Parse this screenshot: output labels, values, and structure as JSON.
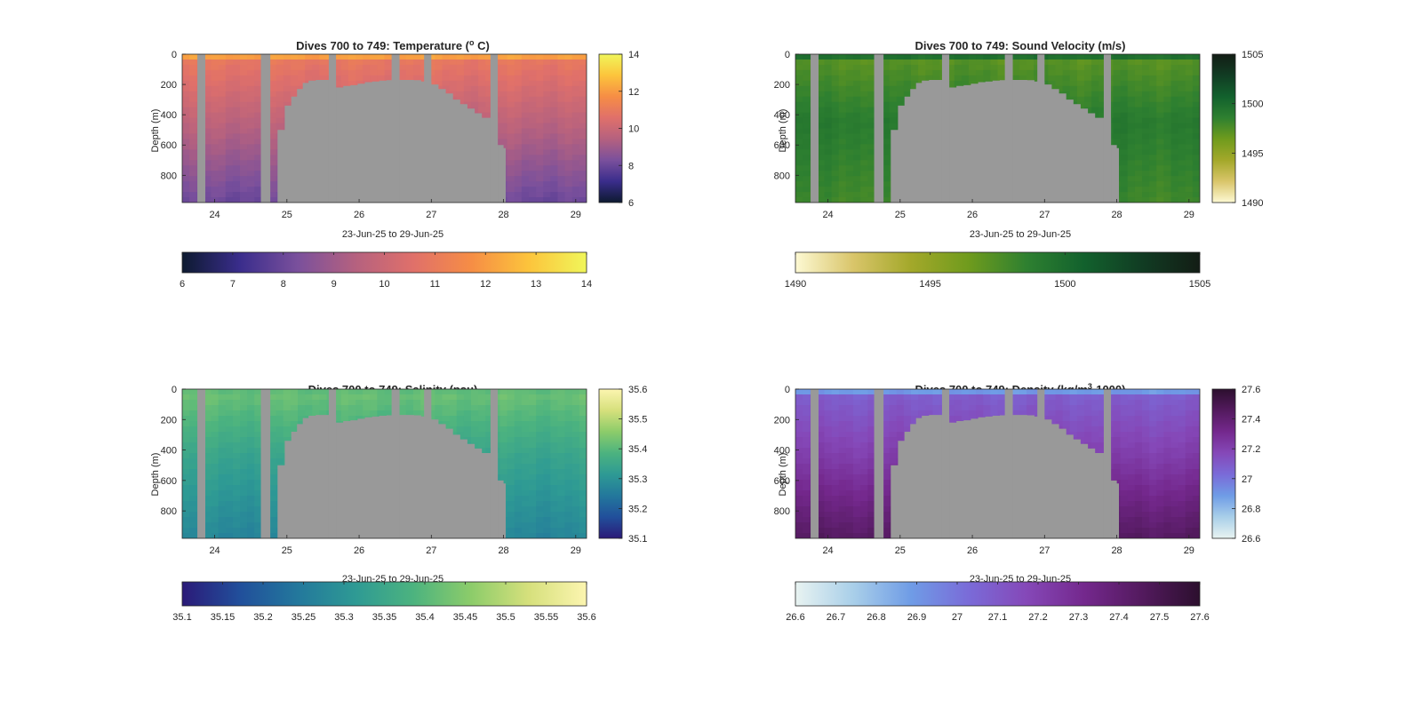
{
  "figure": {
    "background": "#ffffff",
    "axis_color": "#262626",
    "mask_color": "#999999"
  },
  "chart_data": [
    {
      "type": "heatmap",
      "title": "Dives 700 to 749: Temperature (",
      "title_sup": "o",
      "title_end": " C)",
      "xlabel": "23-Jun-25 to 29-Jun-25",
      "ylabel": "Depth (m)",
      "xlim": [
        23.55,
        29.15
      ],
      "ylim": [
        0,
        980
      ],
      "y_reversed": true,
      "x_ticks": [
        "24",
        "25",
        "26",
        "27",
        "28",
        "29"
      ],
      "y_ticks": [
        "0",
        "200",
        "400",
        "600",
        "800"
      ],
      "colorbar": {
        "range": [
          6,
          14
        ],
        "ticks": [
          "6",
          "8",
          "10",
          "12",
          "14"
        ],
        "colors": [
          "#0d1a30",
          "#3a2d8c",
          "#7a509c",
          "#b5617f",
          "#e0706a",
          "#f68d45",
          "#fcc43c",
          "#f0f65a"
        ]
      },
      "horizontal_colorbar": {
        "range": [
          6,
          14
        ],
        "ticks": [
          "6",
          "7",
          "8",
          "9",
          "10",
          "11",
          "12",
          "13",
          "14"
        ]
      },
      "field": {
        "surface": 13.0,
        "upper": 10.9,
        "deep": 9.6,
        "bottom": 8.0
      }
    },
    {
      "type": "heatmap",
      "title": "Dives 700 to 749: Sound Velocity (m/s)",
      "xlabel": "23-Jun-25 to 29-Jun-25",
      "ylabel": "Depth (m)",
      "xlim": [
        23.55,
        29.15
      ],
      "ylim": [
        0,
        980
      ],
      "y_reversed": true,
      "x_ticks": [
        "24",
        "25",
        "26",
        "27",
        "28",
        "29"
      ],
      "y_ticks": [
        "0",
        "200",
        "400",
        "600",
        "800"
      ],
      "colorbar": {
        "range": [
          1490,
          1505
        ],
        "ticks": [
          "1490",
          "1495",
          "1500",
          "1505"
        ],
        "colors": [
          "#fdf9d3",
          "#d9c56a",
          "#a3a82a",
          "#6f9b1d",
          "#2e8030",
          "#12612d",
          "#113c23",
          "#131d15"
        ]
      },
      "horizontal_colorbar": {
        "range": [
          1490,
          1505
        ],
        "ticks": [
          "1490",
          "1495",
          "1500",
          "1505"
        ]
      },
      "field": {
        "surface": 1501.5,
        "upper": 1497.2,
        "deep": 1499.0,
        "bottom": 1498.0
      }
    },
    {
      "type": "heatmap",
      "title": "Dives 700 to 749: Salinity (psu)",
      "xlabel": "23-Jun-25 to 29-Jun-25",
      "ylabel": "Depth (m)",
      "xlim": [
        23.55,
        29.15
      ],
      "ylim": [
        0,
        980
      ],
      "y_reversed": true,
      "x_ticks": [
        "24",
        "25",
        "26",
        "27",
        "28",
        "29"
      ],
      "y_ticks": [
        "0",
        "200",
        "400",
        "600",
        "800"
      ],
      "colorbar": {
        "range": [
          35.1,
          35.6
        ],
        "ticks": [
          "35.1",
          "35.2",
          "35.3",
          "35.4",
          "35.5",
          "35.6"
        ],
        "colors": [
          "#2b1a78",
          "#214f9b",
          "#23789c",
          "#2e9a94",
          "#4cb37f",
          "#8ccc6a",
          "#d6e07c",
          "#fcf5b0"
        ]
      },
      "horizontal_colorbar": {
        "range": [
          35.1,
          35.6
        ],
        "ticks": [
          "35.1",
          "35.15",
          "35.2",
          "35.25",
          "35.3",
          "35.35",
          "35.4",
          "35.45",
          "35.5",
          "35.55",
          "35.6"
        ]
      },
      "field": {
        "surface": 35.4,
        "upper": 35.42,
        "deep": 35.34,
        "bottom": 35.27
      }
    },
    {
      "type": "heatmap",
      "title": "Dives 700 to 749: Density (kg/m",
      "title_sup": "3",
      "title_end": "-1000)",
      "xlabel": "23-Jun-25 to 29-Jun-25",
      "ylabel": "Depth (m)",
      "xlim": [
        23.55,
        29.15
      ],
      "ylim": [
        0,
        980
      ],
      "y_reversed": true,
      "x_ticks": [
        "24",
        "25",
        "26",
        "27",
        "28",
        "29"
      ],
      "y_ticks": [
        "0",
        "200",
        "400",
        "600",
        "800"
      ],
      "colorbar": {
        "range": [
          26.6,
          27.6
        ],
        "ticks": [
          "26.6",
          "26.8",
          "27",
          "27.2",
          "27.4",
          "27.6"
        ],
        "colors": [
          "#e8f3f1",
          "#a9cfe9",
          "#6f9ce6",
          "#7a6bd8",
          "#8548b8",
          "#74288d",
          "#531a5e",
          "#2c0f2e"
        ]
      },
      "horizontal_colorbar": {
        "range": [
          26.6,
          27.6
        ],
        "ticks": [
          "26.6",
          "26.7",
          "26.8",
          "26.9",
          "27",
          "27.1",
          "27.2",
          "27.3",
          "27.4",
          "27.5",
          "27.6"
        ]
      },
      "field": {
        "surface": 26.75,
        "upper": 27.08,
        "deep": 27.22,
        "bottom": 27.45
      }
    }
  ],
  "shared": {
    "gaps_days": [
      [
        23.76,
        23.87
      ],
      [
        24.64,
        24.77
      ],
      [
        25.58,
        25.68
      ],
      [
        26.45,
        26.56
      ],
      [
        26.9,
        27.0
      ],
      [
        27.82,
        27.92
      ]
    ],
    "mask_profile": [
      [
        24.77,
        980
      ],
      [
        24.87,
        500
      ],
      [
        24.97,
        340
      ],
      [
        25.06,
        280
      ],
      [
        25.14,
        230
      ],
      [
        25.22,
        190
      ],
      [
        25.3,
        175
      ],
      [
        25.4,
        170
      ],
      [
        25.5,
        170
      ],
      [
        25.68,
        220
      ],
      [
        25.78,
        210
      ],
      [
        25.88,
        205
      ],
      [
        25.98,
        195
      ],
      [
        26.08,
        185
      ],
      [
        26.18,
        180
      ],
      [
        26.28,
        175
      ],
      [
        26.38,
        172
      ],
      [
        26.56,
        170
      ],
      [
        26.66,
        170
      ],
      [
        26.76,
        172
      ],
      [
        26.86,
        180
      ],
      [
        27.0,
        200
      ],
      [
        27.1,
        230
      ],
      [
        27.2,
        260
      ],
      [
        27.3,
        300
      ],
      [
        27.4,
        330
      ],
      [
        27.5,
        360
      ],
      [
        27.6,
        390
      ],
      [
        27.7,
        420
      ],
      [
        27.92,
        600
      ],
      [
        28.0,
        620
      ],
      [
        28.03,
        980
      ]
    ]
  }
}
